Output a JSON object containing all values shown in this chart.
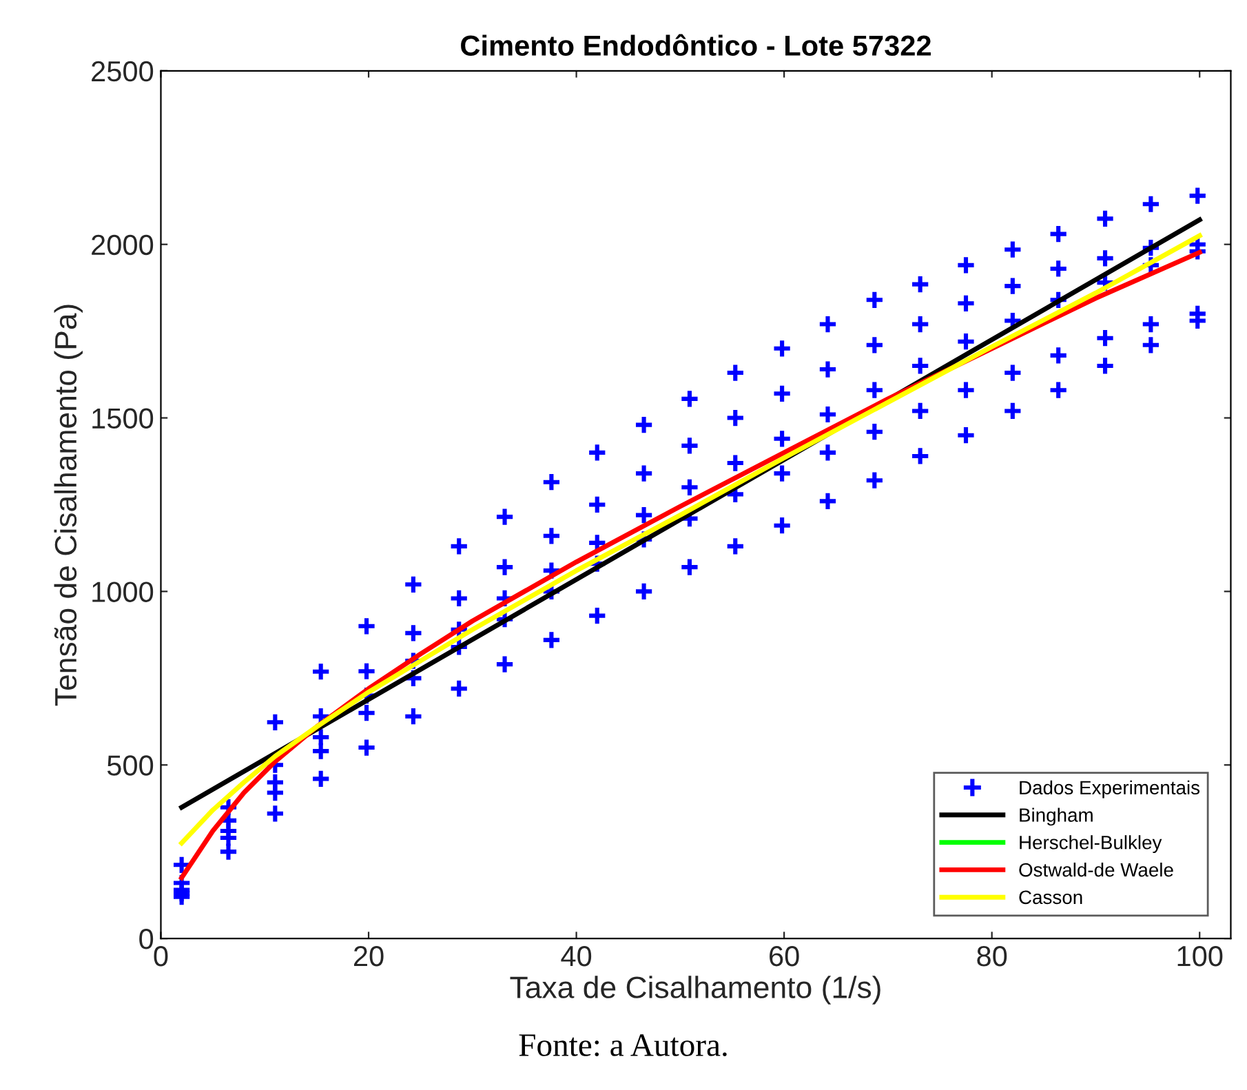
{
  "chart_data": {
    "type": "scatter",
    "title": "Cimento Endodôntico - Lote 57322",
    "xlabel": "Taxa de Cisalhamento (1/s)",
    "ylabel": "Tensão de Cisalhamento (Pa)",
    "annotations": [
      "Fonte: a Autora."
    ],
    "xlim": [
      0,
      103
    ],
    "xticks": [
      0,
      20,
      40,
      60,
      80,
      100
    ],
    "ylim": [
      0,
      2500
    ],
    "yticks": [
      0,
      500,
      1000,
      1500,
      2000,
      2500
    ],
    "grid": false,
    "legend": "bottom right",
    "series": [
      {
        "name": "Dados Experimentais",
        "marker": "cross",
        "color": "#0000ff",
        "x": [
          2,
          6.5,
          11,
          15.4,
          19.8,
          24.3,
          28.7,
          33.1,
          37.6,
          42,
          46.5,
          50.9,
          55.3,
          59.8,
          64.2,
          68.7,
          73.1,
          77.5,
          82,
          86.4,
          90.9,
          95.3,
          99.8,
          2,
          6.5,
          11,
          15.4,
          19.8,
          24.3,
          28.7,
          33.1,
          37.6,
          42,
          46.5,
          50.9,
          55.3,
          59.8,
          64.2,
          68.7,
          73.1,
          77.5,
          82,
          86.4,
          90.9,
          95.3,
          99.8,
          2,
          6.5,
          11,
          15.4,
          19.8,
          24.3,
          28.7,
          33.1,
          37.6,
          42,
          46.5,
          50.9,
          55.3,
          59.8,
          64.2,
          68.7,
          73.1,
          77.5,
          82,
          86.4,
          90.9,
          95.3,
          99.8,
          2,
          6.5,
          11,
          15.4,
          19.8,
          24.3,
          28.7,
          33.1,
          37.6,
          42,
          46.5,
          50.9,
          55.3,
          59.8,
          64.2,
          68.7,
          73.1,
          77.5,
          82,
          86.4,
          90.9,
          95.3,
          99.8,
          2,
          6.5,
          11,
          15.4,
          19.8,
          24.3,
          28.7,
          33.1,
          37.6,
          42,
          46.5,
          50.9,
          55.3,
          59.8,
          64.2,
          68.7,
          73.1,
          77.5,
          82,
          86.4,
          90.9,
          95.3,
          99.8
        ],
        "values": [
          212,
          378,
          623,
          769,
          900,
          1020,
          1130,
          1215,
          1315,
          1400,
          1480,
          1555,
          1630,
          1700,
          1770,
          1840,
          1885,
          1940,
          1985,
          2030,
          2074,
          2116,
          2140,
          160,
          340,
          500,
          640,
          770,
          880,
          980,
          1070,
          1160,
          1250,
          1340,
          1420,
          1500,
          1570,
          1640,
          1710,
          1770,
          1830,
          1880,
          1930,
          1960,
          1990,
          2000,
          140,
          310,
          450,
          580,
          700,
          800,
          890,
          980,
          1060,
          1140,
          1220,
          1300,
          1370,
          1440,
          1510,
          1580,
          1650,
          1720,
          1780,
          1840,
          1890,
          1940,
          1980,
          130,
          290,
          420,
          540,
          650,
          750,
          840,
          920,
          1000,
          1080,
          1150,
          1210,
          1280,
          1340,
          1400,
          1460,
          1520,
          1580,
          1630,
          1680,
          1730,
          1770,
          1800,
          120,
          250,
          360,
          460,
          550,
          640,
          720,
          790,
          860,
          930,
          1000,
          1070,
          1130,
          1190,
          1260,
          1320,
          1390,
          1450,
          1520,
          1580,
          1650,
          1710,
          1780
        ]
      },
      {
        "name": "Bingham",
        "type": "line",
        "color": "#000000",
        "x": [
          2,
          100
        ],
        "values": [
          378,
          2071
        ]
      },
      {
        "name": "Herschel-Bulkley",
        "type": "line",
        "color": "#00ff00"
      },
      {
        "name": "Ostwald-de Waele",
        "type": "line",
        "color": "#ff0000",
        "x": [
          2,
          5,
          8,
          11,
          15,
          20,
          25,
          30,
          35,
          40,
          50,
          60,
          70,
          80,
          90,
          100
        ],
        "values": [
          175,
          310,
          420,
          510,
          610,
          720,
          820,
          915,
          1000,
          1085,
          1245,
          1400,
          1555,
          1700,
          1845,
          1977
        ]
      },
      {
        "name": "Casson",
        "type": "line",
        "color": "#ffff00",
        "x": [
          2,
          5,
          8,
          11,
          15,
          20,
          25,
          30,
          35,
          40,
          50,
          60,
          70,
          80,
          90,
          100
        ],
        "values": [
          275,
          370,
          450,
          525,
          610,
          710,
          800,
          890,
          975,
          1060,
          1220,
          1385,
          1545,
          1705,
          1860,
          2025
        ]
      }
    ]
  }
}
